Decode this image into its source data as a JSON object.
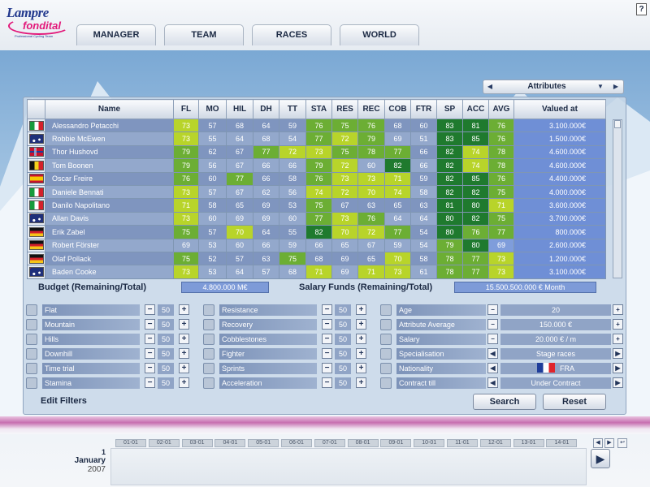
{
  "logo": {
    "line1": "Lampre",
    "line2": "fondital",
    "line3": "Professional Cycling Team"
  },
  "help": {
    "label": "?"
  },
  "nav_tabs": [
    {
      "label": "MANAGER"
    },
    {
      "label": "TEAM"
    },
    {
      "label": "RACES"
    },
    {
      "label": "WORLD"
    }
  ],
  "view_selector": {
    "value": "Attributes",
    "prev": "◀",
    "next": "▶",
    "dropdown": "▼"
  },
  "columns": [
    "",
    "Name",
    "FL",
    "MO",
    "HIL",
    "DH",
    "TT",
    "STA",
    "RES",
    "REC",
    "COB",
    "FTR",
    "SP",
    "ACC",
    "AVG",
    "Valued at"
  ],
  "riders": [
    {
      "flag": "ita",
      "name": "Alessandro Petacchi",
      "stats": [
        73,
        57,
        68,
        64,
        59,
        76,
        75,
        76,
        68,
        60,
        83,
        81,
        76
      ],
      "value": "3.100.000€"
    },
    {
      "flag": "aus",
      "name": "Robbie McEwen",
      "stats": [
        73,
        55,
        64,
        68,
        54,
        77,
        72,
        79,
        69,
        51,
        83,
        85,
        76
      ],
      "value": "1.500.000€"
    },
    {
      "flag": "nor",
      "name": "Thor Hushovd",
      "stats": [
        79,
        62,
        67,
        77,
        72,
        73,
        75,
        78,
        77,
        66,
        82,
        74,
        78
      ],
      "value": "4.600.000€"
    },
    {
      "flag": "bel",
      "name": "Tom Boonen",
      "stats": [
        79,
        56,
        67,
        66,
        66,
        79,
        72,
        60,
        82,
        66,
        82,
        74,
        78
      ],
      "value": "4.600.000€"
    },
    {
      "flag": "esp",
      "name": "Oscar Freire",
      "stats": [
        76,
        60,
        77,
        66,
        58,
        76,
        73,
        73,
        71,
        59,
        82,
        85,
        76
      ],
      "value": "4.400.000€"
    },
    {
      "flag": "ita",
      "name": "Daniele Bennati",
      "stats": [
        73,
        57,
        67,
        62,
        56,
        74,
        72,
        70,
        74,
        58,
        82,
        82,
        75
      ],
      "value": "4.000.000€"
    },
    {
      "flag": "ita",
      "name": "Danilo Napolitano",
      "stats": [
        71,
        58,
        65,
        69,
        53,
        75,
        67,
        63,
        65,
        63,
        81,
        80,
        71
      ],
      "value": "3.600.000€"
    },
    {
      "flag": "aus",
      "name": "Allan Davis",
      "stats": [
        73,
        60,
        69,
        69,
        60,
        77,
        73,
        76,
        64,
        64,
        80,
        82,
        75
      ],
      "value": "3.700.000€"
    },
    {
      "flag": "ger",
      "name": "Erik Zabel",
      "stats": [
        75,
        57,
        70,
        64,
        55,
        82,
        70,
        72,
        77,
        54,
        80,
        76,
        77
      ],
      "value": "800.000€"
    },
    {
      "flag": "ger",
      "name": "Robert Förster",
      "stats": [
        69,
        53,
        60,
        66,
        59,
        66,
        65,
        67,
        59,
        54,
        79,
        80,
        69
      ],
      "value": "2.600.000€"
    },
    {
      "flag": "ger",
      "name": "Olaf Pollack",
      "stats": [
        75,
        52,
        57,
        63,
        75,
        68,
        69,
        65,
        70,
        58,
        78,
        77,
        73
      ],
      "value": "1.200.000€"
    },
    {
      "flag": "aus",
      "name": "Baden Cooke",
      "stats": [
        73,
        53,
        64,
        57,
        68,
        71,
        69,
        71,
        73,
        61,
        78,
        77,
        73
      ],
      "value": "3.100.000€"
    }
  ],
  "selected_row": 0,
  "budget": {
    "label": "Budget (Remaining/Total)",
    "value": "4.800.000 M€"
  },
  "salary": {
    "label": "Salary Funds (Remaining/Total)",
    "value": "15.500.500.000 €  Month"
  },
  "filters_col1": [
    {
      "label": "Flat",
      "value": "50"
    },
    {
      "label": "Mountain",
      "value": "50"
    },
    {
      "label": "Hills",
      "value": "50"
    },
    {
      "label": "Downhill",
      "value": "50"
    },
    {
      "label": "Time trial",
      "value": "50"
    },
    {
      "label": "Stamina",
      "value": "50"
    }
  ],
  "filters_col2": [
    {
      "label": "Resistance",
      "value": "50"
    },
    {
      "label": "Recovery",
      "value": "50"
    },
    {
      "label": "Cobblestones",
      "value": "50"
    },
    {
      "label": "Fighter",
      "value": "50"
    },
    {
      "label": "Sprints",
      "value": "50"
    },
    {
      "label": "Acceleration",
      "value": "50"
    }
  ],
  "filters_col3": [
    {
      "label": "Age",
      "value": "20",
      "control": "pm"
    },
    {
      "label": "Attribute Average",
      "value": "150.000 €",
      "control": "pm"
    },
    {
      "label": "Salary",
      "value": "20.000 € / m",
      "control": "pm"
    },
    {
      "label": "Specialisation",
      "value": "Stage races",
      "control": "arrows"
    },
    {
      "label": "Nationality",
      "value": "FRA",
      "control": "arrows",
      "flag": "fra"
    },
    {
      "label": "Contract till",
      "value": "Under Contract",
      "control": "arrows"
    }
  ],
  "edit_filters_label": "Edit Filters",
  "search_label": "Search",
  "reset_label": "Reset",
  "calendar": {
    "days": [
      "01-01",
      "02-01",
      "03-01",
      "04-01",
      "05-01",
      "06-01",
      "07-01",
      "08-01",
      "09-01",
      "10-01",
      "11-01",
      "12-01",
      "13-01",
      "14-01"
    ],
    "day_num": "1",
    "month": "January",
    "year": "2007"
  },
  "colors": {
    "green_light": "#b8d42a",
    "green_mid": "#6cae34",
    "green_dark": "#1f7a2e",
    "blue_cell": "#7f9ddb",
    "row_alt": "#8aa0c5"
  }
}
